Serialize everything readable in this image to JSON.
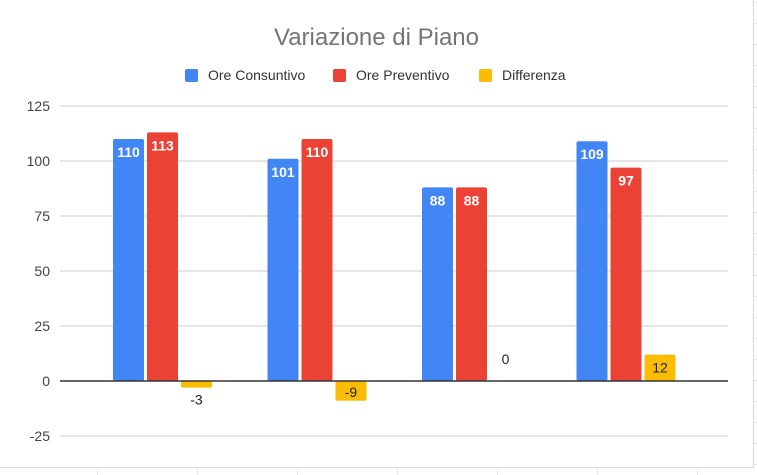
{
  "chart_data": {
    "type": "bar",
    "title": "Variazione di Piano",
    "xlabel": "",
    "ylabel": "",
    "ylim": [
      -30,
      130
    ],
    "yticks": [
      125,
      100,
      75,
      50,
      25,
      0,
      -25
    ],
    "grid": true,
    "legend_position": "top",
    "categories": [
      "",
      "",
      "",
      ""
    ],
    "series": [
      {
        "name": "Ore Consuntivo",
        "color": "#4285f4",
        "values": [
          110,
          101,
          88,
          109
        ],
        "labels": [
          "110",
          "101",
          "88",
          "109"
        ]
      },
      {
        "name": "Ore Preventivo",
        "color": "#ea4335",
        "values": [
          113,
          110,
          88,
          97
        ],
        "labels": [
          "113",
          "110",
          "88",
          "97"
        ]
      },
      {
        "name": "Differenza",
        "color": "#fbbc04",
        "values": [
          -3,
          -9,
          0,
          12
        ],
        "labels": [
          "-3",
          "-9",
          "0",
          "12"
        ]
      }
    ]
  }
}
